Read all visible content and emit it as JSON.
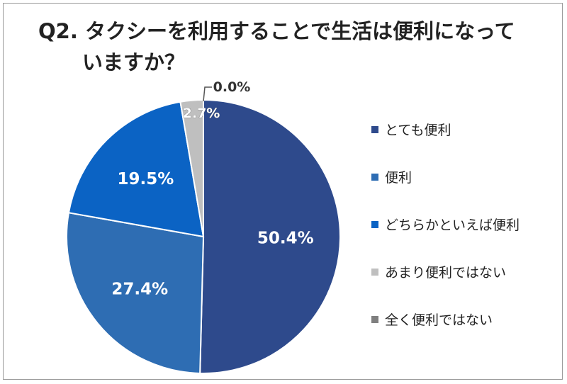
{
  "title": {
    "line1": "Q2. タクシーを利用することで生活は便利になって",
    "line2": "いますか？"
  },
  "chart_data": {
    "type": "pie",
    "title": "Q2. タクシーを利用することで生活は便利になっていますか？",
    "categories": [
      "とても便利",
      "便利",
      "どちらかといえば便利",
      "あまり便利ではない",
      "全く便利ではない"
    ],
    "values": [
      50.4,
      27.4,
      19.5,
      2.7,
      0.0
    ],
    "labels": [
      "50.4%",
      "27.4%",
      "19.5%",
      "2.7%",
      "0.0%"
    ],
    "colors": [
      "#2e4a8c",
      "#2e6db3",
      "#0b63c4",
      "#bfbfbf",
      "#7f7f7f"
    ],
    "legend_position": "right",
    "start_angle": "12 o'clock",
    "direction": "clockwise"
  }
}
